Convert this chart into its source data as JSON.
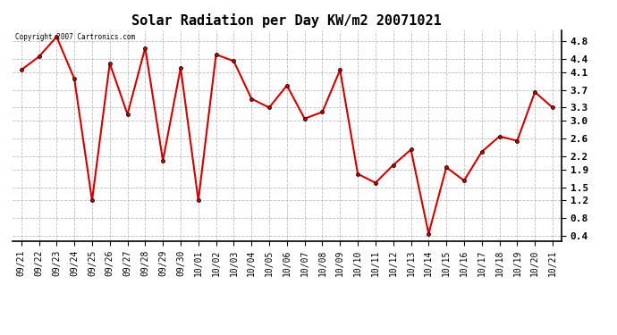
{
  "title": "Solar Radiation per Day KW/m2 20071021",
  "copyright_text": "Copyright 2007 Cartronics.com",
  "labels": [
    "09/21",
    "09/22",
    "09/23",
    "09/24",
    "09/25",
    "09/26",
    "09/27",
    "09/28",
    "09/29",
    "09/30",
    "10/01",
    "10/02",
    "10/03",
    "10/04",
    "10/05",
    "10/06",
    "10/07",
    "10/08",
    "10/09",
    "10/10",
    "10/11",
    "10/12",
    "10/13",
    "10/14",
    "10/15",
    "10/16",
    "10/17",
    "10/18",
    "10/19",
    "10/20",
    "10/21"
  ],
  "values": [
    4.15,
    4.45,
    4.9,
    3.95,
    1.2,
    4.3,
    3.15,
    4.65,
    2.1,
    4.2,
    1.2,
    4.5,
    4.35,
    3.5,
    3.3,
    3.8,
    3.05,
    3.2,
    4.15,
    1.8,
    1.6,
    2.0,
    2.35,
    0.45,
    1.95,
    1.65,
    2.3,
    2.65,
    2.55,
    3.65,
    3.3
  ],
  "y_ticks": [
    0.4,
    0.8,
    1.2,
    1.5,
    1.9,
    2.2,
    2.6,
    3.0,
    3.3,
    3.7,
    4.1,
    4.4,
    4.8
  ],
  "ylim": [
    0.28,
    5.05
  ],
  "line_color": "#cc0000",
  "marker_color": "#000000",
  "background_color": "#ffffff",
  "grid_color": "#bbbbbb",
  "title_fontsize": 11,
  "tick_fontsize": 7,
  "figsize": [
    6.9,
    3.75
  ],
  "dpi": 100
}
